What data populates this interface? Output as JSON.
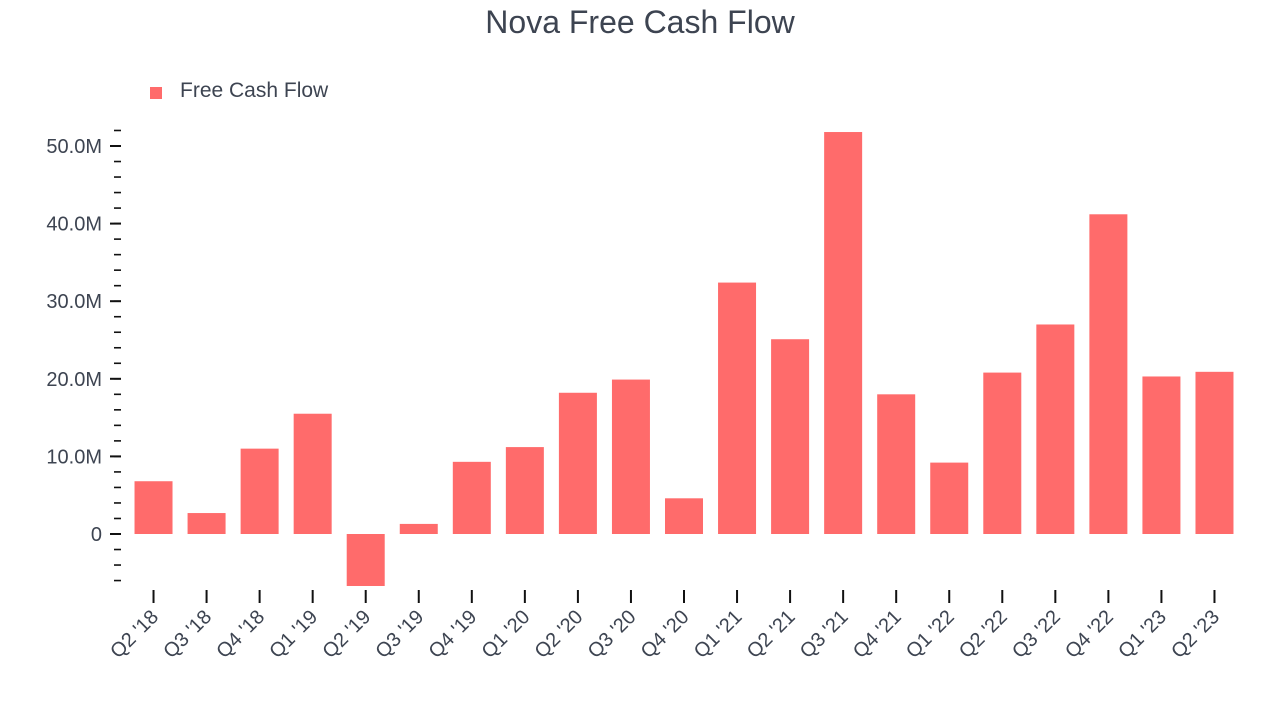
{
  "chart_data": {
    "type": "bar",
    "title": "Nova Free Cash Flow",
    "xlabel": "",
    "ylabel": "",
    "categories": [
      "Q2 '18",
      "Q3 '18",
      "Q4 '18",
      "Q1 '19",
      "Q2 '19",
      "Q3 '19",
      "Q4 '19",
      "Q1 '20",
      "Q2 '20",
      "Q3 '20",
      "Q4 '20",
      "Q1 '21",
      "Q2 '21",
      "Q3 '21",
      "Q4 '21",
      "Q1 '22",
      "Q2 '22",
      "Q3 '22",
      "Q4 '22",
      "Q1 '23",
      "Q2 '23"
    ],
    "series": [
      {
        "name": "Free Cash Flow",
        "color": "#ff6b6b",
        "values": [
          6.8,
          2.7,
          11.0,
          15.5,
          -6.7,
          1.3,
          9.3,
          11.2,
          18.2,
          19.9,
          4.6,
          32.4,
          25.1,
          51.8,
          18.0,
          9.2,
          20.8,
          27.0,
          41.2,
          20.3,
          20.9
        ]
      }
    ],
    "ylim": [
      -7,
      52
    ],
    "yticks": [
      0,
      10,
      20,
      30,
      40,
      50
    ],
    "ytick_labels": [
      "0",
      "10.0M",
      "20.0M",
      "30.0M",
      "40.0M",
      "50.0M"
    ],
    "legend": "top-left",
    "grid": false
  }
}
